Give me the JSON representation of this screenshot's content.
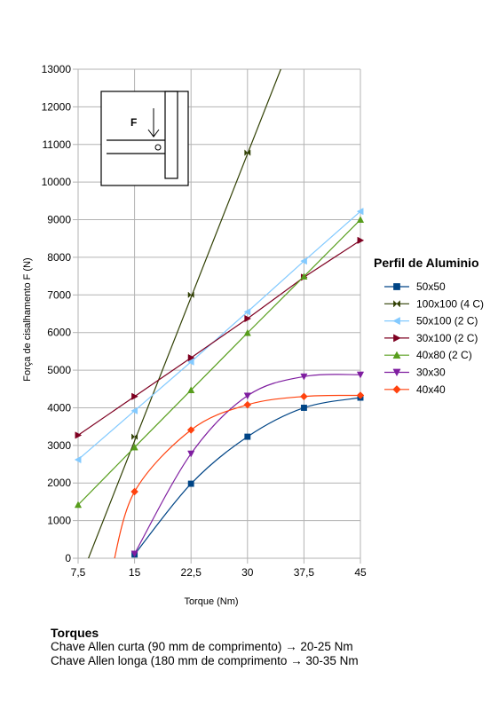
{
  "chart_data": {
    "type": "line",
    "title": "",
    "xlabel": "Torque (Nm)",
    "ylabel": "Força de cisalhamento F (N)",
    "x": [
      7.5,
      15,
      22.5,
      30,
      37.5,
      45
    ],
    "xtick_labels": [
      "7,5",
      "15",
      "22,5",
      "30",
      "37,5",
      "45"
    ],
    "xlim": [
      7.5,
      45
    ],
    "ylim": [
      0,
      13000
    ],
    "yticks": [
      0,
      1000,
      2000,
      3000,
      4000,
      5000,
      6000,
      7000,
      8000,
      9000,
      10000,
      11000,
      12000,
      13000
    ],
    "grid": true,
    "legend_title": "Perfil de Aluminio",
    "legend_position": "right",
    "inset_label": "F",
    "series": [
      {
        "name": "50x50",
        "color": "#004586",
        "marker": "square",
        "x": [
          15,
          22.5,
          30,
          37.5,
          45
        ],
        "values": [
          100,
          1980,
          3230,
          4000,
          4270
        ]
      },
      {
        "name": "100x100 (4 C)",
        "color": "#314004",
        "marker": "bowtie",
        "x": [
          15,
          22.5,
          30
        ],
        "values": [
          3230,
          7000,
          10780
        ]
      },
      {
        "name": "50x100 (2 C)",
        "color": "#83caff",
        "marker": "triangle-left",
        "x": [
          7.5,
          15,
          22.5,
          30,
          37.5,
          45
        ],
        "values": [
          2620,
          3920,
          5220,
          6550,
          7900,
          9220
        ]
      },
      {
        "name": "30x100 (2 C)",
        "color": "#7e0021",
        "marker": "triangle-right",
        "x": [
          7.5,
          15,
          22.5,
          30,
          37.5,
          45
        ],
        "values": [
          3270,
          4300,
          5330,
          6370,
          7470,
          8450
        ]
      },
      {
        "name": "40x80 (2 C)",
        "color": "#579d1c",
        "marker": "triangle-up",
        "x": [
          7.5,
          15,
          22.5,
          30,
          37.5,
          45
        ],
        "values": [
          1420,
          2950,
          4470,
          5990,
          7490,
          9000
        ]
      },
      {
        "name": "30x30",
        "color": "#7f1ea0",
        "marker": "triangle-down",
        "x": [
          15,
          22.5,
          30,
          37.5,
          45
        ],
        "values": [
          120,
          2780,
          4320,
          4830,
          4880
        ]
      },
      {
        "name": "40x40",
        "color": "#ff420e",
        "marker": "diamond",
        "x": [
          15,
          22.5,
          30,
          37.5,
          45
        ],
        "values": [
          1770,
          3410,
          4080,
          4300,
          4330
        ]
      }
    ]
  },
  "notes": {
    "title": "Torques",
    "line1": "Chave Allen curta (90 mm de comprimento) → 20-25 Nm",
    "line2": "Chave Allen longa (180 mm de comprimento → 30-35 Nm"
  }
}
